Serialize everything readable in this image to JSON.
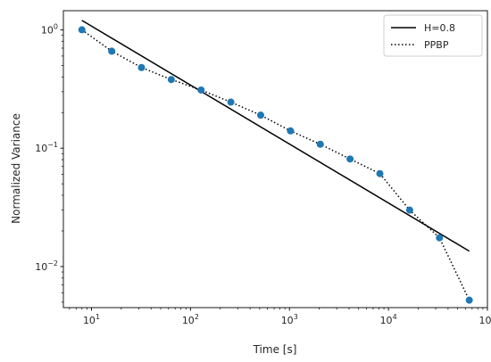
{
  "chart_data": {
    "type": "line",
    "xlabel": "Time [s]",
    "ylabel": "Normalized Variance",
    "xscale": "log",
    "yscale": "log",
    "xlim": [
      5.2,
      100000
    ],
    "ylim": [
      0.0045,
      1.45
    ],
    "x_ticks": [
      {
        "value": 10,
        "base": "10",
        "exp": "1"
      },
      {
        "value": 100,
        "base": "10",
        "exp": "2"
      },
      {
        "value": 1000,
        "base": "10",
        "exp": "3"
      },
      {
        "value": 10000,
        "base": "10",
        "exp": "4"
      },
      {
        "value": 100000,
        "base": "10",
        "exp": "5"
      }
    ],
    "y_ticks": [
      {
        "value": 0.01,
        "base": "10",
        "exp": "−2"
      },
      {
        "value": 0.1,
        "base": "10",
        "exp": "−1"
      },
      {
        "value": 1,
        "base": "10",
        "exp": "0"
      }
    ],
    "legend_position": "top-right",
    "series": [
      {
        "name": "H=0.8",
        "style": "solid",
        "color": "#000000",
        "x": [
          8,
          65536
        ],
        "y": [
          1.2,
          0.0135
        ]
      },
      {
        "name": "PPBP",
        "style": "dotted",
        "color": "#000000",
        "marker_color": "#1f77b4",
        "x": [
          8,
          16,
          32,
          64,
          128,
          256,
          512,
          1024,
          2048,
          4096,
          8192,
          16384,
          32768,
          65536
        ],
        "y": [
          1.0,
          0.66,
          0.48,
          0.38,
          0.31,
          0.245,
          0.19,
          0.14,
          0.108,
          0.081,
          0.061,
          0.03,
          0.0175,
          0.0052
        ]
      }
    ]
  }
}
